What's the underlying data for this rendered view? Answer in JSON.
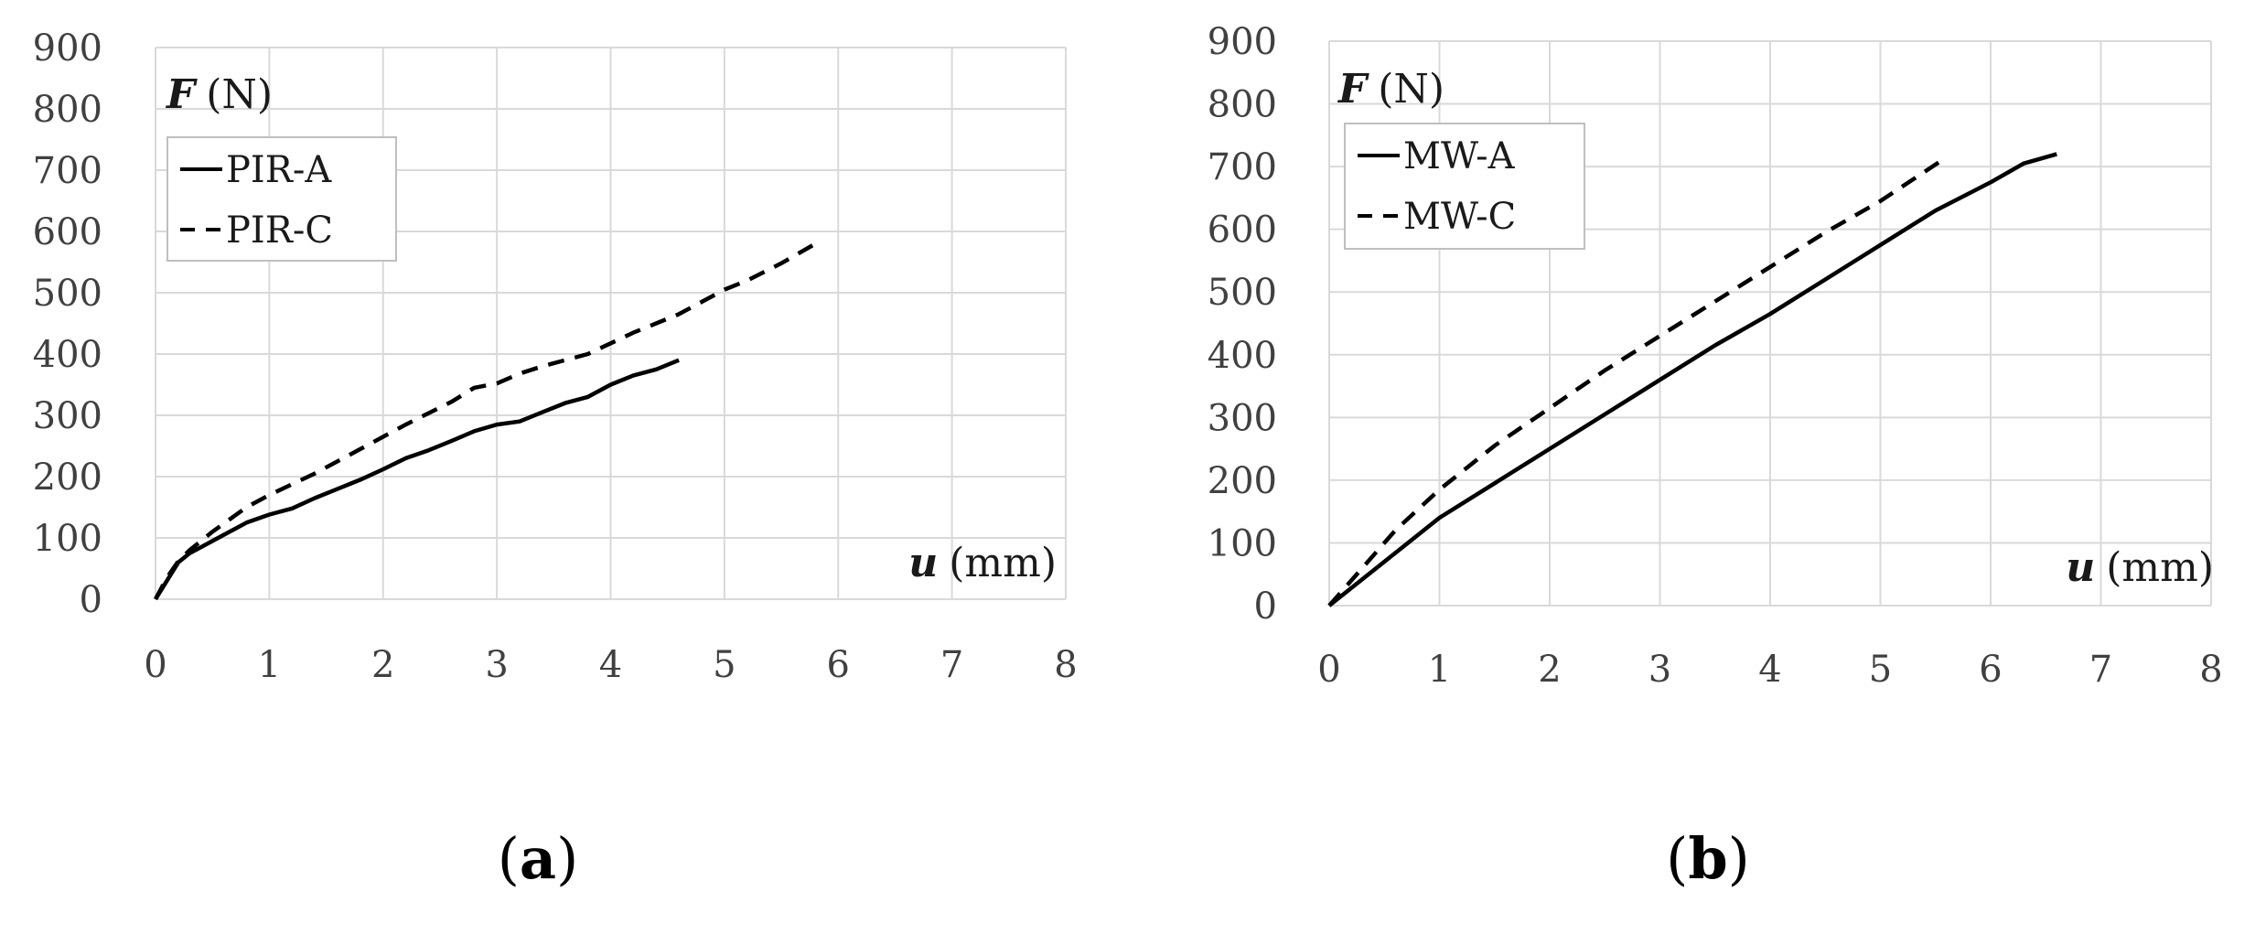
{
  "chart_data": [
    {
      "type": "line",
      "panel_label": "a",
      "ylabel_symbol": "F",
      "ylabel_unit": "(N)",
      "xlabel_symbol": "u",
      "xlabel_unit": "(mm)",
      "xlim": [
        0,
        8
      ],
      "ylim": [
        0,
        900
      ],
      "x_ticks": [
        "0",
        "1",
        "2",
        "3",
        "4",
        "5",
        "6",
        "7",
        "8"
      ],
      "y_ticks": [
        "0",
        "100",
        "200",
        "300",
        "400",
        "500",
        "600",
        "700",
        "800",
        "900"
      ],
      "grid": true,
      "legend_position": "top-left",
      "series": [
        {
          "name": "PIR-A",
          "style": "solid",
          "x": [
            0,
            0.1,
            0.2,
            0.3,
            0.5,
            0.8,
            1.0,
            1.2,
            1.4,
            1.6,
            1.8,
            2.0,
            2.2,
            2.4,
            2.6,
            2.8,
            3.0,
            3.2,
            3.4,
            3.6,
            3.8,
            4.0,
            4.2,
            4.4,
            4.6
          ],
          "y": [
            0,
            30,
            60,
            75,
            95,
            125,
            138,
            148,
            165,
            180,
            195,
            212,
            230,
            243,
            258,
            274,
            285,
            290,
            305,
            320,
            330,
            350,
            365,
            375,
            390
          ]
        },
        {
          "name": "PIR-C",
          "style": "dashed",
          "x": [
            0,
            0.1,
            0.2,
            0.3,
            0.5,
            0.8,
            1.0,
            1.4,
            1.8,
            2.2,
            2.6,
            2.8,
            3.0,
            3.2,
            3.4,
            3.8,
            4.2,
            4.6,
            5.0,
            5.2,
            5.5,
            5.8
          ],
          "y": [
            0,
            35,
            62,
            80,
            110,
            150,
            170,
            205,
            245,
            285,
            322,
            345,
            352,
            368,
            380,
            400,
            435,
            465,
            505,
            520,
            548,
            580
          ]
        }
      ]
    },
    {
      "type": "line",
      "panel_label": "b",
      "ylabel_symbol": "F",
      "ylabel_unit": "(N)",
      "xlabel_symbol": "u",
      "xlabel_unit": "(mm)",
      "xlim": [
        0,
        8
      ],
      "ylim": [
        0,
        900
      ],
      "x_ticks": [
        "0",
        "1",
        "2",
        "3",
        "4",
        "5",
        "6",
        "7",
        "8"
      ],
      "y_ticks": [
        "0",
        "100",
        "200",
        "300",
        "400",
        "500",
        "600",
        "700",
        "800",
        "900"
      ],
      "grid": true,
      "legend_position": "top-left",
      "series": [
        {
          "name": "MW-A",
          "style": "solid",
          "x": [
            0,
            0.5,
            1.0,
            1.5,
            2.0,
            2.5,
            3.0,
            3.5,
            4.0,
            4.5,
            5.0,
            5.5,
            6.0,
            6.3,
            6.6
          ],
          "y": [
            0,
            70,
            140,
            195,
            250,
            305,
            360,
            415,
            465,
            520,
            575,
            630,
            675,
            705,
            720
          ]
        },
        {
          "name": "MW-C",
          "style": "dashed",
          "x": [
            0,
            0.3,
            0.6,
            1.0,
            1.5,
            2.0,
            2.5,
            3.0,
            3.5,
            4.0,
            4.5,
            5.0,
            5.3,
            5.6
          ],
          "y": [
            0,
            60,
            120,
            185,
            255,
            315,
            375,
            430,
            485,
            540,
            595,
            645,
            680,
            715
          ]
        }
      ]
    }
  ]
}
